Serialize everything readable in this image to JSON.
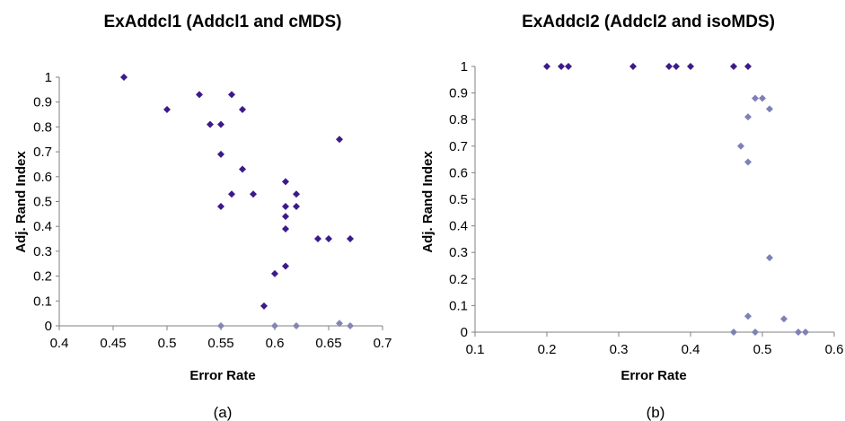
{
  "chart_data": [
    {
      "type": "scatter",
      "title": "ExAddcl1 (Addcl1 and cMDS)",
      "xlabel": "Error Rate",
      "ylabel": "Adj. Rand Index",
      "caption": "(a)",
      "xlim": [
        0.4,
        0.7
      ],
      "ylim": [
        0,
        1
      ],
      "x_ticks": [
        "0.4",
        "0.45",
        "0.5",
        "0.55",
        "0.6",
        "0.65",
        "0.7"
      ],
      "y_ticks": [
        "0",
        "0.1",
        "0.2",
        "0.3",
        "0.4",
        "0.5",
        "0.6",
        "0.7",
        "0.8",
        "0.9",
        "1"
      ],
      "grid": false,
      "series": [
        {
          "color": "#3d1a8a",
          "points": [
            [
              0.46,
              1.0
            ],
            [
              0.5,
              0.87
            ],
            [
              0.53,
              0.93
            ],
            [
              0.54,
              0.81
            ],
            [
              0.55,
              0.81
            ],
            [
              0.56,
              0.93
            ],
            [
              0.57,
              0.87
            ],
            [
              0.55,
              0.69
            ],
            [
              0.57,
              0.63
            ],
            [
              0.56,
              0.53
            ],
            [
              0.58,
              0.53
            ],
            [
              0.55,
              0.48
            ],
            [
              0.61,
              0.58
            ],
            [
              0.62,
              0.53
            ],
            [
              0.61,
              0.48
            ],
            [
              0.62,
              0.48
            ],
            [
              0.61,
              0.44
            ],
            [
              0.61,
              0.39
            ],
            [
              0.64,
              0.35
            ],
            [
              0.65,
              0.35
            ],
            [
              0.67,
              0.35
            ],
            [
              0.66,
              0.75
            ],
            [
              0.61,
              0.24
            ],
            [
              0.6,
              0.21
            ],
            [
              0.59,
              0.08
            ]
          ]
        },
        {
          "color": "#8585b5",
          "points": [
            [
              0.55,
              0.0
            ],
            [
              0.6,
              0.0
            ],
            [
              0.62,
              0.0
            ],
            [
              0.66,
              0.01
            ],
            [
              0.67,
              0.0
            ]
          ]
        }
      ]
    },
    {
      "type": "scatter",
      "title": "ExAddcl2 (Addcl2 and  isoMDS)",
      "xlabel": "Error Rate",
      "ylabel": "Adj. Rand Index",
      "caption": "(b)",
      "xlim": [
        0.1,
        0.6
      ],
      "ylim": [
        0,
        1
      ],
      "x_ticks": [
        "0.1",
        "0.2",
        "0.3",
        "0.4",
        "0.5",
        "0.6"
      ],
      "y_ticks": [
        "0",
        "0.1",
        "0.2",
        "0.3",
        "0.4",
        "0.5",
        "0.6",
        "0.7",
        "0.8",
        "0.9",
        "1"
      ],
      "grid": false,
      "series": [
        {
          "color": "#3d1a8a",
          "points": [
            [
              0.2,
              1.0
            ],
            [
              0.22,
              1.0
            ],
            [
              0.23,
              1.0
            ],
            [
              0.32,
              1.0
            ],
            [
              0.37,
              1.0
            ],
            [
              0.38,
              1.0
            ],
            [
              0.4,
              1.0
            ],
            [
              0.46,
              1.0
            ],
            [
              0.48,
              1.0
            ]
          ]
        },
        {
          "color": "#8080b8",
          "points": [
            [
              0.49,
              0.88
            ],
            [
              0.5,
              0.88
            ],
            [
              0.51,
              0.84
            ],
            [
              0.48,
              0.81
            ],
            [
              0.47,
              0.7
            ],
            [
              0.48,
              0.64
            ],
            [
              0.51,
              0.28
            ],
            [
              0.48,
              0.06
            ],
            [
              0.53,
              0.05
            ],
            [
              0.46,
              0.0
            ],
            [
              0.49,
              0.0
            ],
            [
              0.55,
              0.0
            ],
            [
              0.56,
              0.0
            ]
          ]
        }
      ]
    }
  ]
}
